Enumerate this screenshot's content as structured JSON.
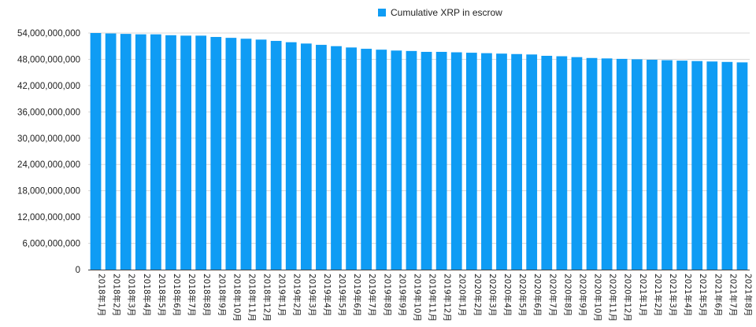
{
  "chart_data": {
    "type": "bar",
    "legend": {
      "position": "top-center",
      "entries": [
        {
          "label": "Cumulative XRP in escrow",
          "color": "#0f9cf4"
        }
      ]
    },
    "grid": true,
    "ylim": [
      0,
      54000000000
    ],
    "yticks": [
      0,
      6000000000,
      12000000000,
      18000000000,
      24000000000,
      30000000000,
      36000000000,
      42000000000,
      48000000000,
      54000000000
    ],
    "ytick_labels": [
      "0",
      "6,000,000,000",
      "12,000,000,000",
      "18,000,000,000",
      "24,000,000,000",
      "30,000,000,000",
      "36,000,000,000",
      "42,000,000,000",
      "48,000,000,000",
      "54,000,000,000"
    ],
    "categories": [
      "2018年1月",
      "2018年2月",
      "2018年3月",
      "2018年4月",
      "2018年5月",
      "2018年6月",
      "2018年7月",
      "2018年8月",
      "2018年9月",
      "2018年10月",
      "2018年11月",
      "2018年12月",
      "2019年1月",
      "2019年2月",
      "2019年3月",
      "2019年4月",
      "2019年5月",
      "2019年6月",
      "2019年7月",
      "2019年8月",
      "2019年9月",
      "2019年10月",
      "2019年11月",
      "2019年12月",
      "2020年1月",
      "2020年2月",
      "2020年3月",
      "2020年4月",
      "2020年5月",
      "2020年6月",
      "2020年7月",
      "2020年8月",
      "2020年9月",
      "2020年10月",
      "2020年11月",
      "2020年12月",
      "2021年1月",
      "2021年2月",
      "2021年3月",
      "2021年4月",
      "2021年5月",
      "2021年6月",
      "2021年7月",
      "2021年8月"
    ],
    "series": [
      {
        "name": "Cumulative XRP in escrow",
        "color": "#0f9cf4",
        "values": [
          54000000000,
          53900000000,
          53800000000,
          53700000000,
          53700000000,
          53500000000,
          53400000000,
          53400000000,
          53100000000,
          52900000000,
          52700000000,
          52500000000,
          52200000000,
          51900000000,
          51600000000,
          51300000000,
          51000000000,
          50700000000,
          50400000000,
          50200000000,
          50000000000,
          49900000000,
          49700000000,
          49700000000,
          49600000000,
          49500000000,
          49400000000,
          49300000000,
          49200000000,
          49100000000,
          48800000000,
          48700000000,
          48500000000,
          48300000000,
          48200000000,
          48100000000,
          48000000000,
          47900000000,
          47800000000,
          47700000000,
          47600000000,
          47500000000,
          47400000000,
          47300000000
        ]
      }
    ]
  }
}
